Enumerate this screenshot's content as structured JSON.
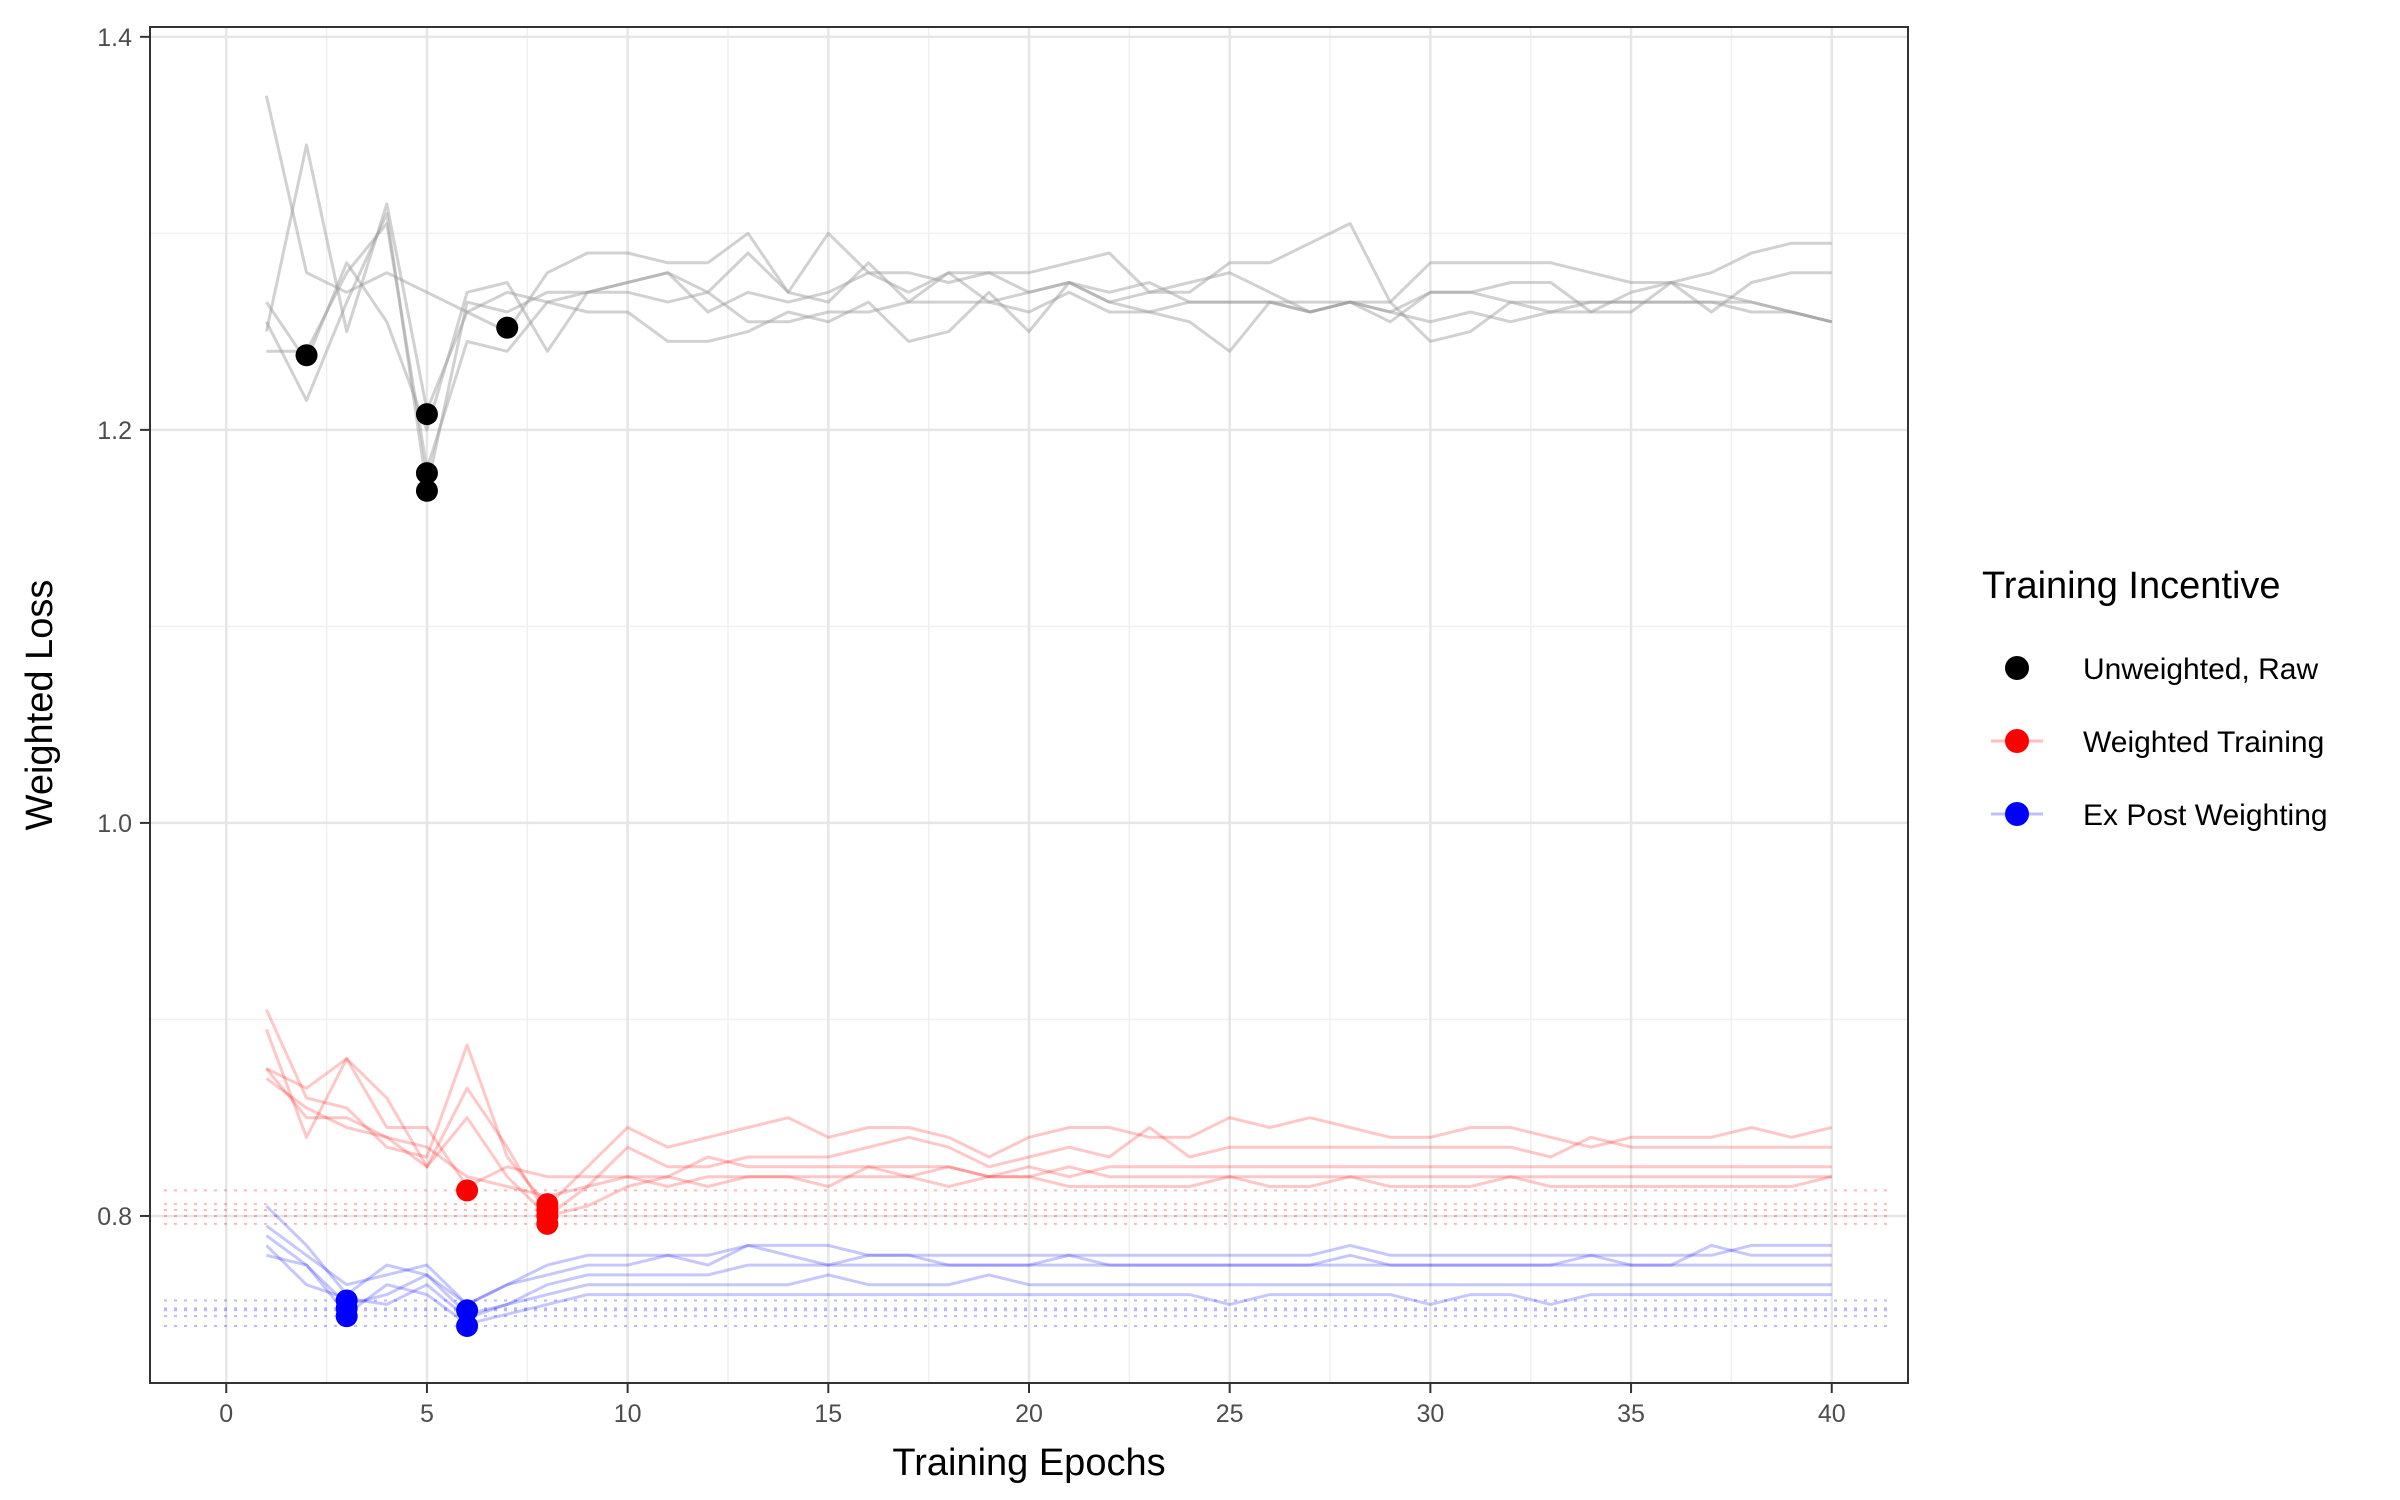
{
  "chart_data": {
    "type": "line",
    "xlabel": "Training Epochs",
    "ylabel": "Weighted Loss",
    "xlim": [
      -1.9,
      41.9
    ],
    "ylim": [
      0.715,
      1.405
    ],
    "x_ticks": [
      0,
      5,
      10,
      15,
      20,
      25,
      30,
      35,
      40
    ],
    "x_tick_labels": [
      "0",
      "5",
      "10",
      "15",
      "20",
      "25",
      "30",
      "35",
      "40"
    ],
    "y_ticks": [
      0.8,
      1.0,
      1.2,
      1.4
    ],
    "y_tick_labels": [
      "0.8",
      "1.0",
      "1.2",
      "1.4"
    ],
    "grid": true,
    "legend": {
      "title": "Training Incentive",
      "placement": "right",
      "entries": [
        {
          "key": "unweighted",
          "label": "Unweighted, Raw",
          "color": "#000000"
        },
        {
          "key": "weighted",
          "label": "Weighted Training",
          "color": "#ff0000"
        },
        {
          "key": "expost",
          "label": "Ex Post Weighting",
          "color": "#0000ff"
        }
      ]
    },
    "x": [
      1,
      2,
      3,
      4,
      5,
      6,
      7,
      8,
      9,
      10,
      11,
      12,
      13,
      14,
      15,
      16,
      17,
      18,
      19,
      20,
      21,
      22,
      23,
      24,
      25,
      26,
      27,
      28,
      29,
      30,
      31,
      32,
      33,
      34,
      35,
      36,
      37,
      38,
      39,
      40
    ],
    "groups": [
      {
        "key": "unweighted",
        "name": "Unweighted, Raw",
        "color": "#000000",
        "line_color": "#999999",
        "series": [
          {
            "values": [
              1.37,
              1.28,
              1.27,
              1.28,
              1.27,
              1.26,
              1.25,
              1.28,
              1.29,
              1.29,
              1.285,
              1.285,
              1.3,
              1.27,
              1.3,
              1.28,
              1.27,
              1.28,
              1.28,
              1.28,
              1.285,
              1.29,
              1.27,
              1.275,
              1.28,
              1.27,
              1.26,
              1.265,
              1.26,
              1.255,
              1.26,
              1.255,
              1.26,
              1.26,
              1.27,
              1.275,
              1.28,
              1.29,
              1.295,
              1.295
            ]
          },
          {
            "values": [
              1.25,
              1.345,
              1.25,
              1.315,
              1.21,
              1.26,
              1.27,
              1.265,
              1.27,
              1.275,
              1.28,
              1.27,
              1.29,
              1.27,
              1.265,
              1.285,
              1.265,
              1.28,
              1.265,
              1.27,
              1.275,
              1.265,
              1.27,
              1.27,
              1.285,
              1.285,
              1.295,
              1.305,
              1.265,
              1.285,
              1.285,
              1.285,
              1.285,
              1.28,
              1.275,
              1.275,
              1.27,
              1.265,
              1.26,
              1.255
            ]
          },
          {
            "values": [
              1.265,
              1.235,
              1.285,
              1.255,
              1.2,
              1.27,
              1.275,
              1.24,
              1.27,
              1.275,
              1.28,
              1.26,
              1.27,
              1.265,
              1.27,
              1.28,
              1.28,
              1.275,
              1.28,
              1.27,
              1.275,
              1.265,
              1.26,
              1.255,
              1.24,
              1.265,
              1.26,
              1.265,
              1.255,
              1.27,
              1.27,
              1.275,
              1.275,
              1.26,
              1.26,
              1.275,
              1.26,
              1.275,
              1.28,
              1.28
            ]
          },
          {
            "values": [
              1.24,
              1.24,
              1.28,
              1.305,
              1.18,
              1.245,
              1.24,
              1.265,
              1.26,
              1.26,
              1.245,
              1.245,
              1.25,
              1.26,
              1.255,
              1.265,
              1.245,
              1.25,
              1.27,
              1.25,
              1.275,
              1.27,
              1.275,
              1.265,
              1.265,
              1.265,
              1.26,
              1.265,
              1.265,
              1.245,
              1.25,
              1.265,
              1.26,
              1.265,
              1.265,
              1.265,
              1.265,
              1.265,
              1.26,
              1.255
            ]
          },
          {
            "values": [
              1.255,
              1.215,
              1.265,
              1.31,
              1.17,
              1.265,
              1.26,
              1.27,
              1.27,
              1.27,
              1.265,
              1.27,
              1.255,
              1.255,
              1.26,
              1.26,
              1.265,
              1.265,
              1.265,
              1.26,
              1.27,
              1.26,
              1.26,
              1.265,
              1.265,
              1.265,
              1.265,
              1.265,
              1.26,
              1.27,
              1.27,
              1.265,
              1.265,
              1.265,
              1.265,
              1.265,
              1.265,
              1.26,
              1.26,
              1.255
            ]
          }
        ],
        "best_points": [
          {
            "x": 2,
            "y": 1.238
          },
          {
            "x": 5,
            "y": 1.208
          },
          {
            "x": 5,
            "y": 1.178
          },
          {
            "x": 5,
            "y": 1.169
          },
          {
            "x": 7,
            "y": 1.252
          }
        ]
      },
      {
        "key": "weighted",
        "name": "Weighted Training",
        "color": "#ff0000",
        "line_color": "#ff0000",
        "series": [
          {
            "values": [
              0.905,
              0.86,
              0.855,
              0.835,
              0.83,
              0.887,
              0.83,
              0.805,
              0.825,
              0.845,
              0.835,
              0.84,
              0.845,
              0.85,
              0.84,
              0.845,
              0.845,
              0.84,
              0.83,
              0.84,
              0.845,
              0.845,
              0.84,
              0.84,
              0.85,
              0.845,
              0.85,
              0.845,
              0.84,
              0.84,
              0.845,
              0.845,
              0.84,
              0.835,
              0.84,
              0.84,
              0.84,
              0.845,
              0.84,
              0.845
            ]
          },
          {
            "values": [
              0.895,
              0.84,
              0.88,
              0.86,
              0.825,
              0.865,
              0.835,
              0.8,
              0.815,
              0.835,
              0.825,
              0.825,
              0.83,
              0.83,
              0.83,
              0.835,
              0.84,
              0.835,
              0.825,
              0.83,
              0.835,
              0.83,
              0.845,
              0.83,
              0.835,
              0.835,
              0.835,
              0.835,
              0.835,
              0.835,
              0.835,
              0.835,
              0.83,
              0.84,
              0.835,
              0.835,
              0.835,
              0.835,
              0.835,
              0.835
            ]
          },
          {
            "values": [
              0.875,
              0.85,
              0.85,
              0.84,
              0.825,
              0.85,
              0.82,
              0.8,
              0.805,
              0.815,
              0.82,
              0.815,
              0.82,
              0.82,
              0.815,
              0.825,
              0.82,
              0.815,
              0.82,
              0.82,
              0.815,
              0.815,
              0.815,
              0.815,
              0.82,
              0.815,
              0.815,
              0.82,
              0.815,
              0.815,
              0.815,
              0.82,
              0.815,
              0.815,
              0.815,
              0.815,
              0.815,
              0.815,
              0.815,
              0.82
            ]
          },
          {
            "values": [
              0.875,
              0.865,
              0.88,
              0.845,
              0.845,
              0.815,
              0.825,
              0.82,
              0.82,
              0.82,
              0.82,
              0.83,
              0.825,
              0.825,
              0.825,
              0.825,
              0.825,
              0.825,
              0.82,
              0.825,
              0.82,
              0.825,
              0.825,
              0.825,
              0.825,
              0.825,
              0.825,
              0.825,
              0.825,
              0.825,
              0.825,
              0.825,
              0.825,
              0.825,
              0.825,
              0.825,
              0.825,
              0.825,
              0.825,
              0.825
            ]
          },
          {
            "values": [
              0.87,
              0.855,
              0.845,
              0.84,
              0.835,
              0.82,
              0.815,
              0.81,
              0.815,
              0.82,
              0.815,
              0.82,
              0.82,
              0.82,
              0.82,
              0.82,
              0.82,
              0.825,
              0.82,
              0.82,
              0.825,
              0.82,
              0.82,
              0.82,
              0.82,
              0.82,
              0.82,
              0.82,
              0.82,
              0.82,
              0.82,
              0.82,
              0.82,
              0.82,
              0.82,
              0.82,
              0.82,
              0.82,
              0.82,
              0.82
            ]
          }
        ],
        "best_points": [
          {
            "x": 6,
            "y": 0.813
          },
          {
            "x": 8,
            "y": 0.806
          },
          {
            "x": 8,
            "y": 0.803
          },
          {
            "x": 8,
            "y": 0.8
          },
          {
            "x": 8,
            "y": 0.796
          }
        ],
        "reference_levels": [
          0.796,
          0.8,
          0.803,
          0.806,
          0.813
        ]
      },
      {
        "key": "expost",
        "name": "Ex Post Weighting",
        "color": "#0000ff",
        "line_color": "#0000ff",
        "series": [
          {
            "values": [
              0.805,
              0.785,
              0.76,
              0.775,
              0.77,
              0.755,
              0.765,
              0.775,
              0.78,
              0.78,
              0.78,
              0.78,
              0.785,
              0.785,
              0.785,
              0.78,
              0.78,
              0.78,
              0.78,
              0.78,
              0.78,
              0.78,
              0.78,
              0.78,
              0.78,
              0.78,
              0.78,
              0.785,
              0.78,
              0.78,
              0.78,
              0.78,
              0.78,
              0.78,
              0.78,
              0.78,
              0.78,
              0.785,
              0.785,
              0.785
            ]
          },
          {
            "values": [
              0.795,
              0.78,
              0.765,
              0.77,
              0.775,
              0.755,
              0.765,
              0.77,
              0.775,
              0.775,
              0.78,
              0.775,
              0.785,
              0.78,
              0.775,
              0.78,
              0.78,
              0.775,
              0.775,
              0.775,
              0.78,
              0.775,
              0.775,
              0.775,
              0.775,
              0.775,
              0.775,
              0.78,
              0.775,
              0.775,
              0.775,
              0.775,
              0.775,
              0.78,
              0.775,
              0.775,
              0.785,
              0.78,
              0.78,
              0.78
            ]
          },
          {
            "values": [
              0.79,
              0.775,
              0.755,
              0.76,
              0.77,
              0.75,
              0.755,
              0.765,
              0.77,
              0.77,
              0.77,
              0.77,
              0.775,
              0.775,
              0.775,
              0.775,
              0.775,
              0.775,
              0.775,
              0.775,
              0.775,
              0.775,
              0.775,
              0.775,
              0.775,
              0.775,
              0.775,
              0.775,
              0.775,
              0.775,
              0.775,
              0.775,
              0.775,
              0.775,
              0.775,
              0.775,
              0.775,
              0.775,
              0.775,
              0.775
            ]
          },
          {
            "values": [
              0.785,
              0.765,
              0.758,
              0.755,
              0.765,
              0.748,
              0.755,
              0.76,
              0.765,
              0.765,
              0.765,
              0.765,
              0.765,
              0.765,
              0.77,
              0.765,
              0.765,
              0.765,
              0.77,
              0.765,
              0.765,
              0.765,
              0.765,
              0.765,
              0.765,
              0.765,
              0.765,
              0.765,
              0.765,
              0.765,
              0.765,
              0.765,
              0.765,
              0.765,
              0.765,
              0.765,
              0.765,
              0.765,
              0.765,
              0.765
            ]
          },
          {
            "values": [
              0.78,
              0.775,
              0.75,
              0.765,
              0.76,
              0.745,
              0.75,
              0.755,
              0.76,
              0.76,
              0.76,
              0.76,
              0.76,
              0.76,
              0.76,
              0.76,
              0.76,
              0.76,
              0.76,
              0.76,
              0.76,
              0.76,
              0.76,
              0.76,
              0.755,
              0.76,
              0.76,
              0.76,
              0.76,
              0.755,
              0.76,
              0.76,
              0.755,
              0.76,
              0.76,
              0.76,
              0.76,
              0.76,
              0.76,
              0.76
            ]
          }
        ],
        "best_points": [
          {
            "x": 3,
            "y": 0.757
          },
          {
            "x": 3,
            "y": 0.753
          },
          {
            "x": 3,
            "y": 0.749
          },
          {
            "x": 6,
            "y": 0.752
          },
          {
            "x": 6,
            "y": 0.744
          }
        ],
        "reference_levels": [
          0.744,
          0.749,
          0.752,
          0.753,
          0.757
        ]
      }
    ]
  }
}
